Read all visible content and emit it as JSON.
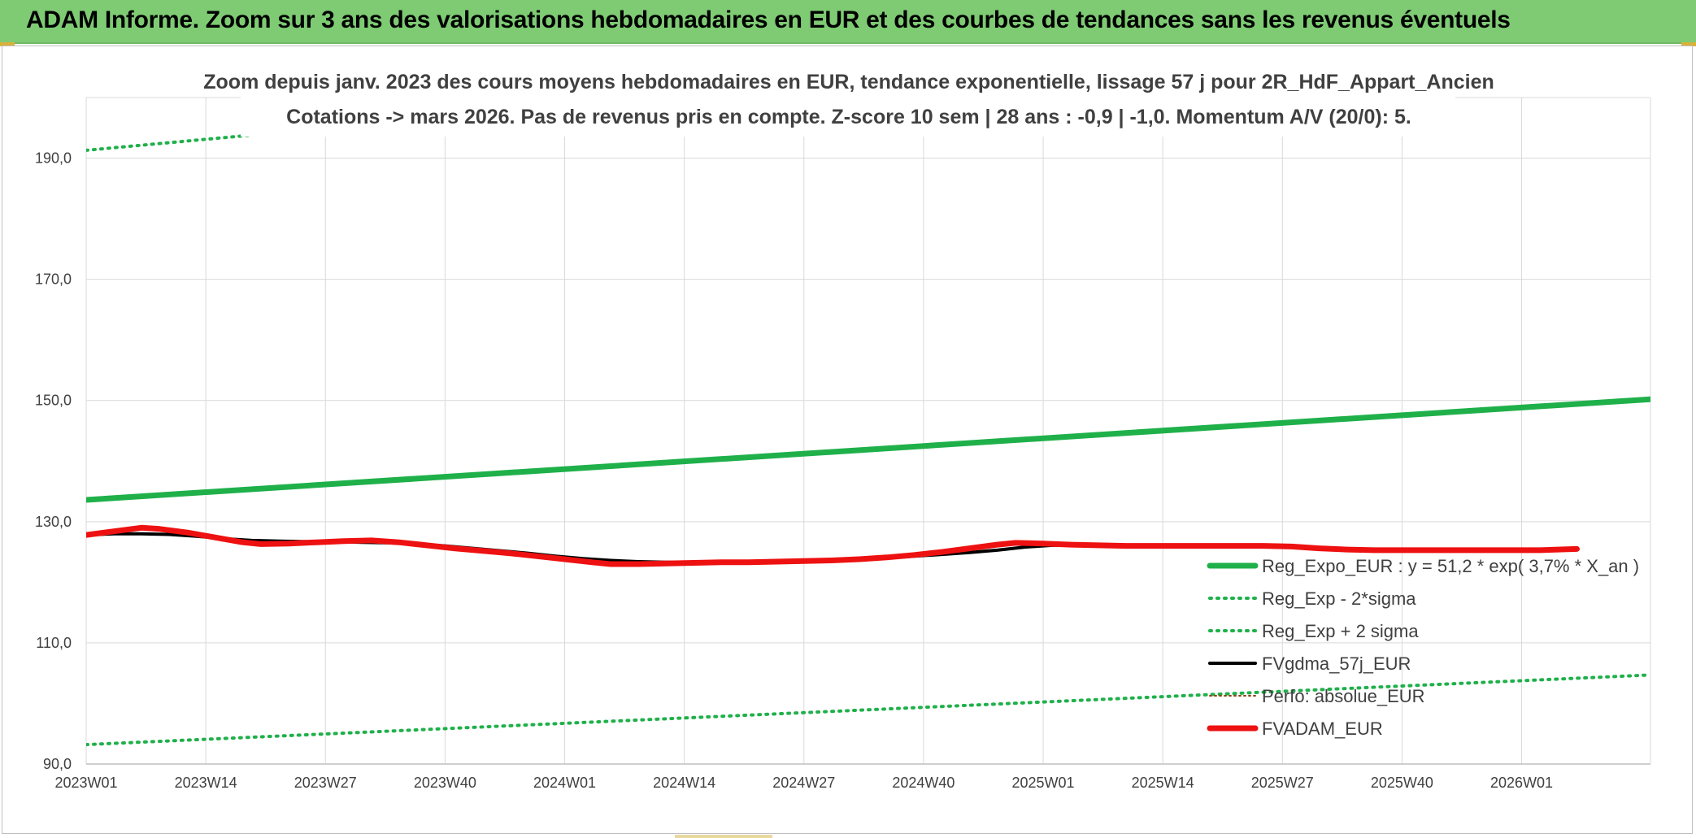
{
  "header": {
    "title": "ADAM Informe. Zoom sur 3 ans des valorisations hebdomadaires en EUR et des courbes de tendances sans les revenus éventuels"
  },
  "colors": {
    "banner": "#7ecb73",
    "trend": "#1fb04a",
    "band": "#1fb04a",
    "fvgdma": "#000000",
    "fvadam": "#ee1111",
    "perfo": "#8b4513",
    "grid": "#d9d9d9"
  },
  "chart_data": {
    "type": "line",
    "title": "Zoom depuis janv. 2023 des cours moyens hebdomadaires en EUR, tendance exponentielle, lissage 57 j pour 2R_HdF_Appart_Ancien",
    "subtitle": "Cotations -> mars 2026. Pas de revenus pris en compte. Z-score 10 sem | 28 ans : -0,9 | -1,0. Momentum A/V (20/0): 5.",
    "xlabel": "",
    "ylabel": "",
    "x_ticks": [
      "2023W01",
      "2023W14",
      "2023W27",
      "2023W40",
      "2024W01",
      "2024W14",
      "2024W27",
      "2024W40",
      "2025W01",
      "2025W14",
      "2025W27",
      "2025W40",
      "2026W01"
    ],
    "y_ticks": [
      "90,0",
      "110,0",
      "130,0",
      "150,0",
      "170,0",
      "190,0"
    ],
    "ylim": [
      90,
      200
    ],
    "grid": true,
    "legend_position": "bottom-right",
    "series": [
      {
        "name": "Reg_Expo_EUR : y = 51,2 * exp( 3,7% *  X_an )",
        "style": "solid-thick",
        "color": "#1fb04a",
        "points": [
          [
            0,
            133.6
          ],
          [
            170,
            150.2
          ]
        ]
      },
      {
        "name": "Reg_Exp - 2*sigma",
        "style": "dotted",
        "color": "#1fb04a",
        "points": [
          [
            0,
            93.2
          ],
          [
            170,
            104.7
          ]
        ]
      },
      {
        "name": "Reg_Exp + 2 sigma",
        "style": "dotted",
        "color": "#1fb04a",
        "points": [
          [
            0,
            191.3
          ],
          [
            170,
            215.0
          ]
        ]
      },
      {
        "name": "FVgdma_57j_EUR",
        "style": "solid",
        "color": "#000000",
        "points": [
          [
            0,
            127.8
          ],
          [
            3,
            128.0
          ],
          [
            6,
            128.0
          ],
          [
            9,
            127.9
          ],
          [
            12,
            127.6
          ],
          [
            15,
            127.2
          ],
          [
            18,
            126.9
          ],
          [
            21,
            126.8
          ],
          [
            24,
            126.7
          ],
          [
            27,
            126.7
          ],
          [
            30,
            126.6
          ],
          [
            33,
            126.5
          ],
          [
            36,
            126.3
          ],
          [
            39,
            126.0
          ],
          [
            42,
            125.6
          ],
          [
            45,
            125.2
          ],
          [
            48,
            124.8
          ],
          [
            51,
            124.3
          ],
          [
            54,
            123.9
          ],
          [
            57,
            123.6
          ],
          [
            60,
            123.4
          ],
          [
            63,
            123.3
          ],
          [
            66,
            123.3
          ],
          [
            69,
            123.3
          ],
          [
            72,
            123.3
          ],
          [
            75,
            123.4
          ],
          [
            78,
            123.5
          ],
          [
            81,
            123.6
          ],
          [
            84,
            123.8
          ],
          [
            87,
            124.0
          ],
          [
            90,
            124.3
          ],
          [
            93,
            124.6
          ],
          [
            96,
            124.9
          ],
          [
            99,
            125.3
          ],
          [
            102,
            125.8
          ],
          [
            105,
            126.1
          ],
          [
            108,
            126.2
          ],
          [
            111,
            126.2
          ],
          [
            114,
            126.1
          ],
          [
            117,
            126.0
          ],
          [
            120,
            126.0
          ],
          [
            123,
            126.0
          ],
          [
            126,
            125.9
          ],
          [
            129,
            125.9
          ],
          [
            132,
            125.8
          ],
          [
            135,
            125.6
          ],
          [
            138,
            125.5
          ],
          [
            141,
            125.4
          ],
          [
            144,
            125.4
          ],
          [
            147,
            125.4
          ],
          [
            150,
            125.4
          ],
          [
            153,
            125.4
          ],
          [
            156,
            125.4
          ],
          [
            159,
            125.4
          ],
          [
            162,
            125.4
          ]
        ]
      },
      {
        "name": "Perfo: absolue_EUR",
        "style": "dotted-thin",
        "color": "#8b4513",
        "points": []
      },
      {
        "name": "FVADAM_EUR",
        "style": "solid-thick",
        "color": "#ee1111",
        "points": [
          [
            0,
            127.8
          ],
          [
            3,
            128.4
          ],
          [
            6,
            129.0
          ],
          [
            8,
            128.8
          ],
          [
            11,
            128.2
          ],
          [
            14,
            127.4
          ],
          [
            17,
            126.6
          ],
          [
            19,
            126.3
          ],
          [
            22,
            126.4
          ],
          [
            25,
            126.6
          ],
          [
            28,
            126.8
          ],
          [
            31,
            126.9
          ],
          [
            34,
            126.6
          ],
          [
            37,
            126.1
          ],
          [
            40,
            125.6
          ],
          [
            43,
            125.2
          ],
          [
            46,
            124.8
          ],
          [
            49,
            124.3
          ],
          [
            52,
            123.8
          ],
          [
            55,
            123.3
          ],
          [
            57,
            123.0
          ],
          [
            60,
            123.0
          ],
          [
            63,
            123.1
          ],
          [
            66,
            123.2
          ],
          [
            69,
            123.3
          ],
          [
            72,
            123.3
          ],
          [
            75,
            123.4
          ],
          [
            78,
            123.5
          ],
          [
            81,
            123.6
          ],
          [
            84,
            123.8
          ],
          [
            87,
            124.1
          ],
          [
            90,
            124.5
          ],
          [
            93,
            125.0
          ],
          [
            96,
            125.6
          ],
          [
            99,
            126.2
          ],
          [
            101,
            126.5
          ],
          [
            104,
            126.4
          ],
          [
            107,
            126.2
          ],
          [
            110,
            126.1
          ],
          [
            113,
            126.0
          ],
          [
            116,
            126.0
          ],
          [
            119,
            126.0
          ],
          [
            122,
            126.0
          ],
          [
            125,
            126.0
          ],
          [
            128,
            126.0
          ],
          [
            131,
            125.9
          ],
          [
            134,
            125.6
          ],
          [
            137,
            125.4
          ],
          [
            140,
            125.3
          ],
          [
            143,
            125.3
          ],
          [
            146,
            125.3
          ],
          [
            149,
            125.3
          ],
          [
            152,
            125.3
          ],
          [
            155,
            125.3
          ],
          [
            158,
            125.3
          ],
          [
            162,
            125.5
          ]
        ]
      }
    ]
  }
}
